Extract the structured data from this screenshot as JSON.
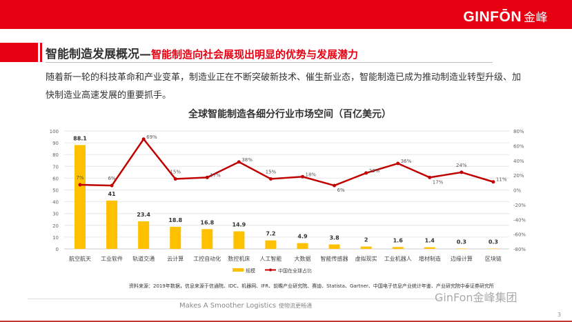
{
  "header": {
    "logo_en": "GINFŌN",
    "logo_cn": "金峰"
  },
  "title": {
    "main": "智能制造发展概况—",
    "sub": "智能制造向社会展现出明显的优势与发展潜力"
  },
  "intro": "随着新一轮的科技革命和产业变革，制造业正在不断突破新技术、催生新业态，智能制造已成为推动制造业转型升级、加快制造业高速发展的重要抓手。",
  "chart_data": {
    "type": "bar",
    "title": "全球智能制造各细分行业市场空间（百亿美元）",
    "categories": [
      "航空航天",
      "工业软件",
      "轨道交通",
      "云计算",
      "工控自动化",
      "数控机床",
      "人工智能",
      "大数据",
      "智能传感器",
      "虚拟现实",
      "工业机器人",
      "增材制造",
      "边缘计算",
      "区块链"
    ],
    "series": [
      {
        "name": "规模",
        "type": "bar",
        "axis": "left",
        "color": "#ffc000",
        "values": [
          88.1,
          41,
          23.4,
          18.8,
          16.8,
          14.9,
          7.2,
          4.9,
          3.8,
          2,
          1.6,
          1.4,
          0.3,
          0.3
        ],
        "labels": [
          "88.1",
          "41",
          "23.4",
          "18.8",
          "16.8",
          "14.9",
          "7.2",
          "4.9",
          "3.8",
          "2",
          "1.6",
          "1.4",
          "0.3",
          "0.3"
        ]
      },
      {
        "name": "中国在全球占比",
        "type": "line",
        "axis": "right",
        "color": "#c00000",
        "values": [
          7,
          6,
          69,
          15,
          17,
          38,
          15,
          18,
          6,
          23,
          36,
          17,
          24,
          11
        ],
        "labels": [
          "7%",
          "6%",
          "69%",
          "15%",
          "17%",
          "38%",
          "15%",
          "18%",
          "6%",
          "23%",
          "36%",
          "17%",
          "24%",
          "11%"
        ]
      }
    ],
    "ylim": [
      0,
      100
    ],
    "yticks": [
      "0",
      "10",
      "20",
      "30",
      "40",
      "50",
      "60",
      "70",
      "80",
      "90",
      "100"
    ],
    "y2lim": [
      -80,
      80
    ],
    "y2ticks": [
      "-80%",
      "-60%",
      "-40%",
      "-20%",
      "0%",
      "20%",
      "40%",
      "60%",
      "80%"
    ],
    "legend": "bottom",
    "grid": true
  },
  "source": "资料来源：2019年数据，信息来源于信通院、IDC、机器网、IFR、前瞻产业研究院、赛迪、Statista、Gartner、中国电子信息产业统计年鉴、产业研究院中泰证券研究所",
  "footer": {
    "slogan": "Makes A Smoother Logistics",
    "slogan_cn": "使物流更畅通",
    "watermark": "GinFon金峰集团",
    "page": "3"
  }
}
